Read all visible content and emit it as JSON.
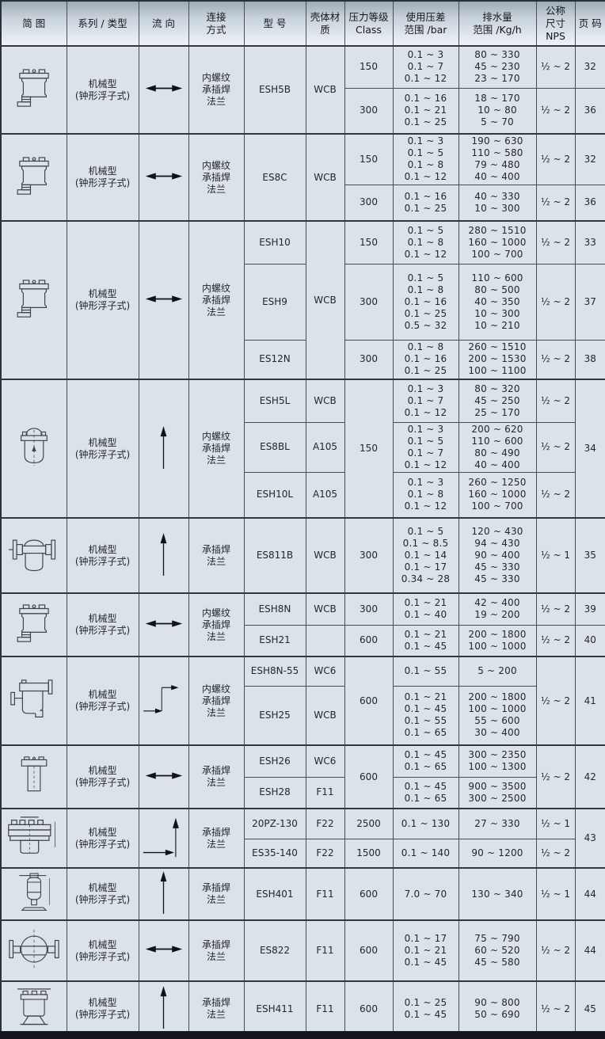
{
  "page": {
    "background": "#d9e0e7",
    "cell_background": "#dbe2e9",
    "grid_color": "#474d53",
    "header_gradient_top": "#9cabb7",
    "header_gradient_bottom": "#eef2f5",
    "bottom_bar_color": "#15161d",
    "text_color": "#23272d"
  },
  "table": {
    "columns": [
      {
        "id": "diagram",
        "label": "简 图"
      },
      {
        "id": "series",
        "label": "系列 / 类型"
      },
      {
        "id": "flow",
        "label": "流 向"
      },
      {
        "id": "connection",
        "label": "连接\n方式"
      },
      {
        "id": "model",
        "label": "型 号"
      },
      {
        "id": "material",
        "label": "壳体材\n质"
      },
      {
        "id": "class",
        "label": "压力等级\nClass"
      },
      {
        "id": "dp",
        "label": "使用压差\n范围 /bar"
      },
      {
        "id": "drain",
        "label": "排水量\n范围 /Kg/h"
      },
      {
        "id": "nps",
        "label": "公称\n尺寸\nNPS"
      },
      {
        "id": "page",
        "label": "页 码"
      }
    ],
    "groups": [
      {
        "diagram_icon": "float-trap-elbow-icon",
        "series": "机械型\n(钟形浮子式)",
        "flow_icon": "flow-arrow-horizontal-icon",
        "connection": "内螺纹\n承插焊\n法兰",
        "rows": [
          {
            "h": 53,
            "model": {
              "t": "ESH5B",
              "span": 2
            },
            "material": {
              "t": "WCB",
              "span": 2
            },
            "class": "150",
            "dp": [
              "0.1 ~ 3",
              "0.1 ~ 7",
              "0.1 ~ 12"
            ],
            "drain": [
              "80 ~ 330",
              "45 ~ 230",
              "23 ~ 170"
            ],
            "nps": "½ ~ 2",
            "page": "32"
          },
          {
            "h": 58,
            "class": "300",
            "dp": [
              "0.1 ~ 16",
              "0.1 ~ 21",
              "0.1 ~ 25"
            ],
            "drain": [
              "18 ~ 170",
              "10 ~ 80",
              "5 ~ 70"
            ],
            "nps": "½ ~ 2",
            "page": "36"
          }
        ]
      },
      {
        "diagram_icon": "float-trap-elbow-icon",
        "series": "机械型\n(钟形浮子式)",
        "flow_icon": "flow-arrow-horizontal-icon",
        "connection": "内螺纹\n承插焊\n法兰",
        "rows": [
          {
            "h": 64,
            "model": {
              "t": "ES8C",
              "span": 2
            },
            "material": {
              "t": "WCB",
              "span": 2
            },
            "class": "150",
            "dp": [
              "0.1 ~ 3",
              "0.1 ~ 5",
              "0.1 ~ 8",
              "0.1 ~ 12"
            ],
            "drain": [
              "190 ~ 630",
              "110 ~ 580",
              "79 ~ 480",
              "40 ~ 400"
            ],
            "nps": "½ ~ 2",
            "page": "32"
          },
          {
            "h": 46,
            "class": "300",
            "dp": [
              "0.1 ~ 16",
              "0.1 ~ 25"
            ],
            "drain": [
              "40 ~ 330",
              "10 ~ 300"
            ],
            "nps": "½ ~ 2",
            "page": "36"
          }
        ]
      },
      {
        "diagram_icon": "float-trap-elbow-icon",
        "series": "机械型\n(钟形浮子式)",
        "flow_icon": "flow-arrow-horizontal-icon",
        "connection": "内螺纹\n承插焊\n法兰",
        "rows": [
          {
            "h": 54,
            "model": "ESH10",
            "material": {
              "t": "WCB",
              "span": 3
            },
            "class": "150",
            "dp": [
              "0.1 ~ 5",
              "0.1 ~ 8",
              "0.1 ~ 12"
            ],
            "drain": [
              "280 ~ 1510",
              "160 ~ 1000",
              "100 ~ 700"
            ],
            "nps": "½ ~ 2",
            "page": "33"
          },
          {
            "h": 96,
            "model": "ESH9",
            "class": "300",
            "dp": [
              "0.1 ~ 5",
              "0.1 ~ 8",
              "0.1 ~ 16",
              "0.1 ~ 25",
              "0.5 ~ 32"
            ],
            "drain": [
              "110 ~ 600",
              "80 ~ 500",
              "40 ~ 350",
              "10 ~ 300",
              "10 ~ 210"
            ],
            "nps": "½ ~ 2",
            "page": "37"
          },
          {
            "h": 50,
            "model": "ES12N",
            "class": "300",
            "dp": [
              "0.1 ~ 8",
              "0.1 ~ 16",
              "0.1 ~ 25"
            ],
            "drain": [
              "260 ~ 1510",
              "200 ~ 1530",
              "100 ~ 1100"
            ],
            "nps": "½ ~ 2",
            "page": "38"
          }
        ]
      },
      {
        "diagram_icon": "inline-vertical-trap-icon",
        "series": "机械型\n(钟形浮子式)",
        "flow_icon": "flow-arrow-up-icon",
        "connection": "内螺纹\n承插焊\n法兰",
        "rows": [
          {
            "h": 54,
            "model": "ESH5L",
            "material": "WCB",
            "class": {
              "t": "150",
              "span": 3
            },
            "dp": [
              "0.1 ~ 3",
              "0.1 ~ 7",
              "0.1 ~ 12"
            ],
            "drain": [
              "80 ~ 320",
              "45 ~ 250",
              "25 ~ 170"
            ],
            "nps": "½ ~ 2",
            "page": {
              "t": "34",
              "span": 3
            }
          },
          {
            "h": 60,
            "model": "ES8BL",
            "material": "A105",
            "dp": [
              "0.1 ~ 3",
              "0.1 ~ 5",
              "0.1 ~ 7",
              "0.1 ~ 12"
            ],
            "drain": [
              "200 ~ 620",
              "110 ~ 600",
              "80 ~ 490",
              "40 ~ 400"
            ],
            "nps": "½ ~ 2"
          },
          {
            "h": 58,
            "model": "ESH10L",
            "material": "A105",
            "dp": [
              "0.1 ~ 3",
              "0.1 ~ 8",
              "0.1 ~ 12"
            ],
            "drain": [
              "260 ~ 1250",
              "160 ~ 1000",
              "100 ~ 700"
            ],
            "nps": "½ ~ 2"
          }
        ]
      },
      {
        "diagram_icon": "flanged-horizontal-trap-icon",
        "series": "机械型\n(钟形浮子式)",
        "flow_icon": "flow-arrow-up-icon",
        "connection": "承插焊\n法兰",
        "rows": [
          {
            "h": 95,
            "model": "ES811B",
            "material": "WCB",
            "class": "300",
            "dp": [
              "0.1 ~ 5",
              "0.1 ~ 8.5",
              "0.1 ~ 14",
              "0.1 ~ 17",
              "0.34 ~ 28"
            ],
            "drain": [
              "120 ~ 430",
              "94 ~ 430",
              "90 ~ 400",
              "45 ~ 330",
              "45 ~ 330"
            ],
            "nps": "½ ~ 1",
            "page": "35"
          }
        ]
      },
      {
        "diagram_icon": "float-trap-elbow-icon",
        "series": "机械型\n(钟形浮子式)",
        "flow_icon": "flow-arrow-horizontal-icon",
        "connection": "内螺纹\n承插焊\n法兰",
        "rows": [
          {
            "h": 40,
            "model": "ESH8N",
            "material": "WCB",
            "class": "300",
            "dp": [
              "0.1 ~ 21",
              "0.1 ~ 40"
            ],
            "drain": [
              "42 ~ 400",
              "19 ~ 200"
            ],
            "nps": "½ ~ 2",
            "page": "39"
          },
          {
            "h": 40,
            "model": "ESH21",
            "material": "",
            "class": "600",
            "dp": [
              "0.1 ~ 21",
              "0.1 ~ 45"
            ],
            "drain": [
              "200 ~ 1800",
              "100 ~ 1000"
            ],
            "nps": "½ ~ 2",
            "page": "40"
          }
        ]
      },
      {
        "diagram_icon": "offset-trap-icon",
        "series": "机械型\n(钟形浮子式)",
        "flow_icon": "flow-arrow-step-icon",
        "connection": "内螺纹\n承插焊\n法兰",
        "rows": [
          {
            "h": 37,
            "model": "ESH8N-55",
            "material": "WC6",
            "class": {
              "t": "600",
              "span": 2
            },
            "dp": [
              "0.1 ~ 55"
            ],
            "drain": [
              "5 ~ 200"
            ],
            "nps": {
              "t": "½ ~ 2",
              "span": 2
            },
            "page": {
              "t": "41",
              "span": 2
            }
          },
          {
            "h": 75,
            "model": "ESH25",
            "material": "WCB",
            "dp": [
              "0.1 ~ 21",
              "0.1 ~ 45",
              "0.1 ~ 55",
              "0.1 ~ 65"
            ],
            "drain": [
              "200 ~ 1800",
              "100 ~ 1000",
              "55 ~ 600",
              "30 ~ 400"
            ]
          }
        ]
      },
      {
        "diagram_icon": "cylinder-trap-icon",
        "series": "机械型\n(钟形浮子式)",
        "flow_icon": "flow-arrow-horizontal-icon",
        "connection": "承插焊\n法兰",
        "rows": [
          {
            "h": 40,
            "model": "ESH26",
            "material": "WC6",
            "class": {
              "t": "600",
              "span": 2
            },
            "dp": [
              "0.1 ~ 45",
              "0.1 ~ 65"
            ],
            "drain": [
              "300 ~ 2350",
              "100 ~ 1300"
            ],
            "nps": {
              "t": "½ ~ 2",
              "span": 2
            },
            "page": {
              "t": "42",
              "span": 2
            }
          },
          {
            "h": 40,
            "model": "ESH28",
            "material": "F11",
            "dp": [
              "0.1 ~ 45",
              "0.1 ~ 65"
            ],
            "drain": [
              "900 ~ 3500",
              "300 ~ 2500"
            ]
          }
        ]
      },
      {
        "diagram_icon": "high-pressure-trap-icon",
        "series": "机械型\n(钟形浮子式)",
        "flow_icon": "flow-arrow-corner-icon",
        "connection": "承插焊\n法兰",
        "rows": [
          {
            "h": 38,
            "model": "20PZ-130",
            "material": "F22",
            "class": "2500",
            "dp": [
              "0.1 ~ 130"
            ],
            "drain": [
              "27 ~ 330"
            ],
            "nps": "½ ~ 1",
            "page": {
              "t": "43",
              "span": 2
            }
          },
          {
            "h": 37,
            "model": "ES35-140",
            "material": "F22",
            "class": "1500",
            "dp": [
              "0.1 ~ 140"
            ],
            "drain": [
              "90 ~ 1200"
            ],
            "nps": "½ ~ 2"
          }
        ]
      },
      {
        "diagram_icon": "vessel-trap-icon",
        "series": "机械型\n(钟形浮子式)",
        "flow_icon": "flow-arrow-up-icon",
        "connection": "承插焊\n法兰",
        "rows": [
          {
            "h": 63,
            "model": "ESH401",
            "material": "F11",
            "class": "600",
            "dp": [
              "7.0 ~ 70"
            ],
            "drain": [
              "130 ~ 340"
            ],
            "nps": "½ ~ 1",
            "page": "44"
          }
        ]
      },
      {
        "diagram_icon": "spherical-trap-icon",
        "series": "机械型\n(钟形浮子式)",
        "flow_icon": "flow-arrow-horizontal-icon",
        "connection": "承插焊\n法兰",
        "rows": [
          {
            "h": 77,
            "model": "ES822",
            "material": "F11",
            "class": "600",
            "dp": [
              "0.1 ~ 17",
              "0.1 ~ 21",
              "0.1 ~ 45"
            ],
            "drain": [
              "75 ~ 790",
              "60 ~ 520",
              "45 ~ 580"
            ],
            "nps": "½ ~ 2",
            "page": "44"
          }
        ]
      },
      {
        "diagram_icon": "flared-base-trap-icon",
        "series": "机械型\n(钟形浮子式)",
        "flow_icon": "flow-arrow-up-icon",
        "connection": "承插焊\n法兰",
        "rows": [
          {
            "h": 70,
            "model": "ESH411",
            "material": "F11",
            "class": "600",
            "dp": [
              "0.1 ~ 25",
              "0.1 ~ 45"
            ],
            "drain": [
              "90 ~ 800",
              "50 ~ 690"
            ],
            "nps": "½ ~ 2",
            "page": "45"
          }
        ]
      }
    ]
  }
}
